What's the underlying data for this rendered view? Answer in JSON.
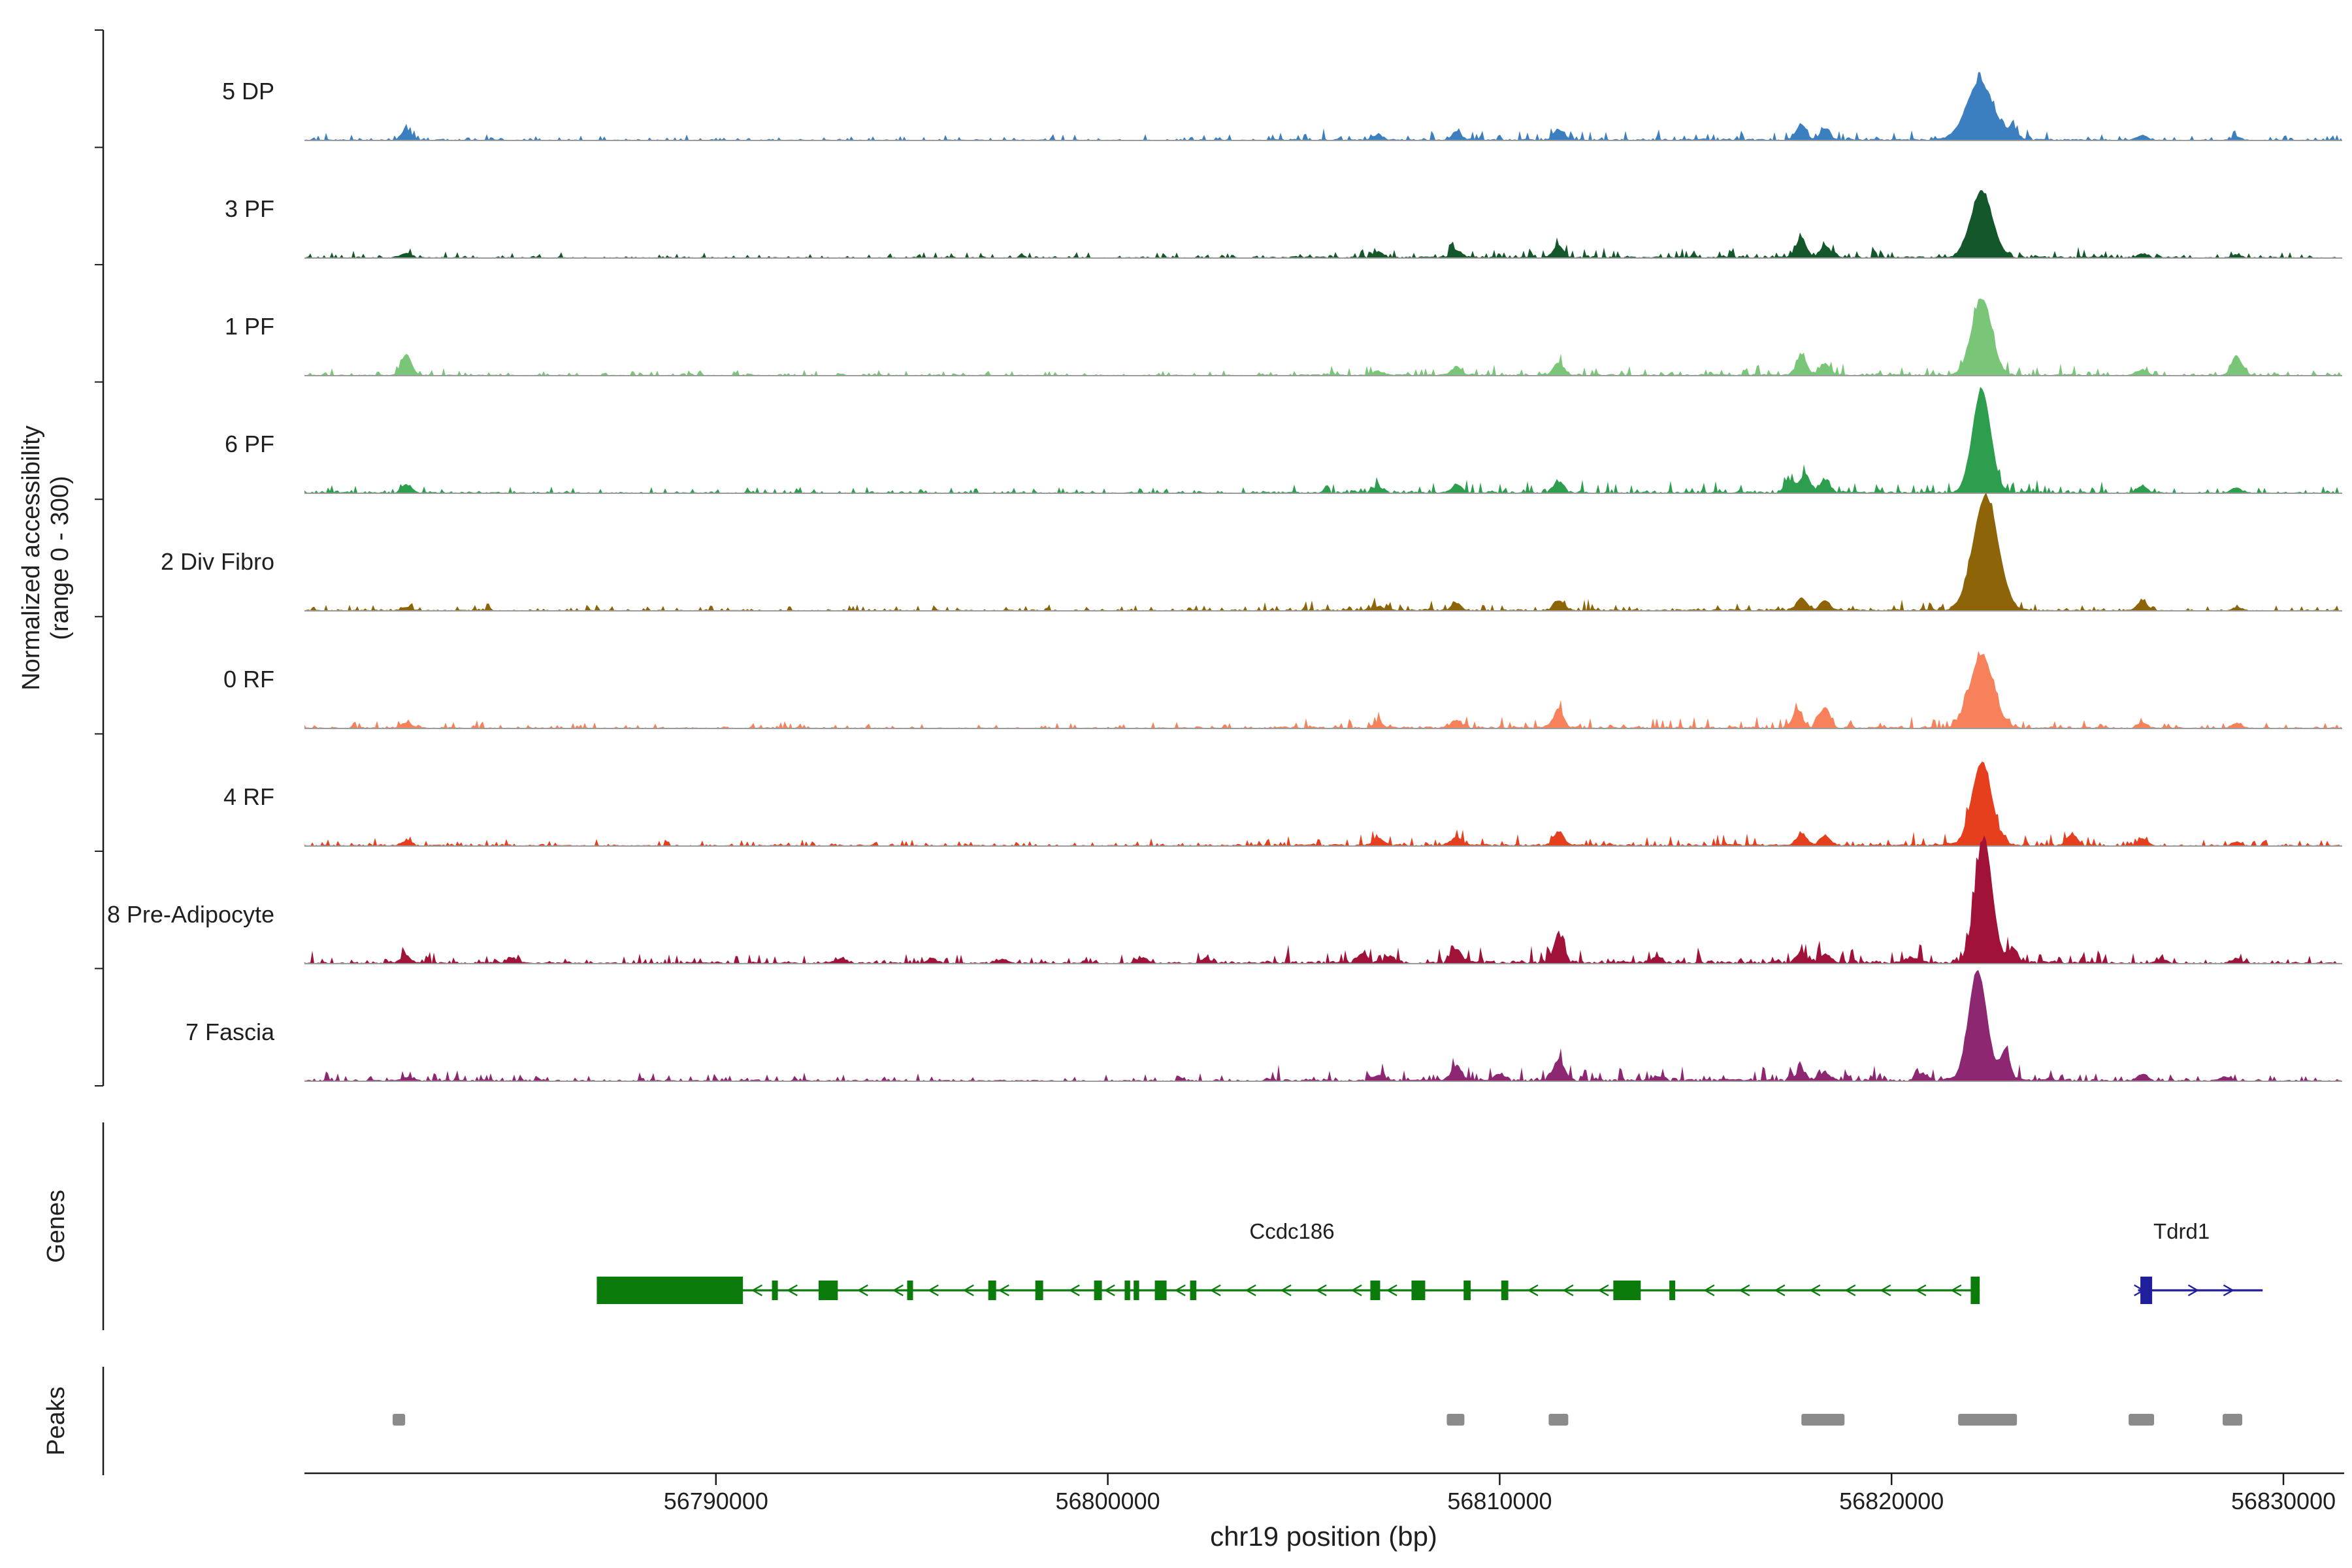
{
  "y_axis": {
    "label_line1": "Normalized accessibility",
    "label_line2": "(range 0 - 300)"
  },
  "sections": {
    "genes_label": "Genes",
    "peaks_label": "Peaks"
  },
  "x_axis": {
    "title": "chr19 position (bp)",
    "ticks": [
      56790000,
      56800000,
      56810000,
      56820000,
      56830000
    ]
  },
  "chart_data": {
    "type": "area",
    "subtype": "genome-coverage-tracks",
    "title": "",
    "xlabel": "chr19 position (bp)",
    "ylabel": "Normalized accessibility (range 0 - 300)",
    "domain": [
      56779500,
      56831500
    ],
    "track_range": [
      0,
      300
    ],
    "x_ticks": [
      56790000,
      56800000,
      56810000,
      56820000,
      56830000
    ],
    "tracks": [
      {
        "label": "5 DP",
        "color": "#3c7fc0",
        "noise": 5,
        "peaks": [
          [
            56782100,
            25
          ],
          [
            56806900,
            12
          ],
          [
            56808900,
            20
          ],
          [
            56811500,
            26
          ],
          [
            56817700,
            38
          ],
          [
            56818300,
            26
          ],
          [
            56822250,
            140,
            800
          ],
          [
            56823100,
            25
          ],
          [
            56826400,
            12
          ],
          [
            56828800,
            9
          ]
        ]
      },
      {
        "label": "3 PF",
        "color": "#14572b",
        "noise": 5,
        "peaks": [
          [
            56782100,
            10
          ],
          [
            56806900,
            14
          ],
          [
            56808900,
            18
          ],
          [
            56811500,
            30
          ],
          [
            56817700,
            48
          ],
          [
            56818300,
            30
          ],
          [
            56822300,
            160,
            650
          ],
          [
            56826400,
            10
          ],
          [
            56828800,
            8
          ]
        ]
      },
      {
        "label": "1 PF",
        "color": "#79c678",
        "noise": 5,
        "peaks": [
          [
            56782100,
            52
          ],
          [
            56806900,
            10
          ],
          [
            56808900,
            20
          ],
          [
            56811500,
            30
          ],
          [
            56817700,
            48
          ],
          [
            56818300,
            28
          ],
          [
            56822300,
            185,
            600
          ],
          [
            56826400,
            14
          ],
          [
            56828800,
            48
          ]
        ]
      },
      {
        "label": "6 PF",
        "color": "#2d9e4e",
        "noise": 5.5,
        "peaks": [
          [
            56782100,
            20
          ],
          [
            56806900,
            14
          ],
          [
            56808900,
            20
          ],
          [
            56811500,
            27
          ],
          [
            56817400,
            30
          ],
          [
            56817800,
            44
          ],
          [
            56818300,
            30
          ],
          [
            56822300,
            250,
            550
          ],
          [
            56826400,
            17
          ],
          [
            56828800,
            13
          ]
        ]
      },
      {
        "label": "2 Div Fibro",
        "color": "#8e6408",
        "noise": 5,
        "peaks": [
          [
            56782100,
            8
          ],
          [
            56806900,
            10
          ],
          [
            56808900,
            16
          ],
          [
            56811500,
            24
          ],
          [
            56817700,
            30
          ],
          [
            56818300,
            24
          ],
          [
            56822400,
            275,
            750
          ],
          [
            56826400,
            24
          ],
          [
            56828800,
            7
          ]
        ]
      },
      {
        "label": "0 RF",
        "color": "#f7815a",
        "noise": 5.5,
        "peaks": [
          [
            56782100,
            13
          ],
          [
            56806900,
            12
          ],
          [
            56808900,
            20
          ],
          [
            56811500,
            44
          ],
          [
            56817600,
            44
          ],
          [
            56818300,
            50
          ],
          [
            56822300,
            175,
            700
          ],
          [
            56826400,
            13
          ],
          [
            56828800,
            12
          ]
        ]
      },
      {
        "label": "4 RF",
        "color": "#e53f1e",
        "noise": 6,
        "peaks": [
          [
            56782100,
            12
          ],
          [
            56806900,
            17
          ],
          [
            56808900,
            20
          ],
          [
            56811500,
            34
          ],
          [
            56817700,
            30
          ],
          [
            56818300,
            24
          ],
          [
            56822300,
            200,
            600
          ],
          [
            56824600,
            28
          ],
          [
            56826400,
            17
          ],
          [
            56828800,
            9
          ]
        ]
      },
      {
        "label": "8 Pre-Adipocyte",
        "color": "#a11238",
        "noise": 8,
        "peaks": [
          [
            56782100,
            17
          ],
          [
            56784800,
            14
          ],
          [
            56793200,
            13
          ],
          [
            56795500,
            12
          ],
          [
            56797300,
            10
          ],
          [
            56800900,
            13
          ],
          [
            56802500,
            12
          ],
          [
            56806500,
            24
          ],
          [
            56807200,
            17
          ],
          [
            56808900,
            34
          ],
          [
            56811500,
            70
          ],
          [
            56814000,
            14
          ],
          [
            56817700,
            27
          ],
          [
            56818300,
            20
          ],
          [
            56820500,
            14
          ],
          [
            56822350,
            300,
            520
          ],
          [
            56823100,
            34
          ],
          [
            56826900,
            10
          ],
          [
            56828800,
            10
          ]
        ]
      },
      {
        "label": "7 Fascia",
        "color": "#8e2772",
        "noise": 7,
        "peaks": [
          [
            56782100,
            8
          ],
          [
            56806900,
            14
          ],
          [
            56808900,
            37
          ],
          [
            56810000,
            17
          ],
          [
            56811500,
            50
          ],
          [
            56814000,
            10
          ],
          [
            56817700,
            24
          ],
          [
            56818300,
            17
          ],
          [
            56820800,
            17
          ],
          [
            56822200,
            265,
            550
          ],
          [
            56822900,
            70
          ],
          [
            56826400,
            17
          ],
          [
            56828500,
            10
          ]
        ]
      }
    ],
    "genes": [
      {
        "name": "Ccdc186",
        "color": "#0b7c0b",
        "strand": "-",
        "start": 56786960,
        "end": 56822250,
        "label_bp": 56804700,
        "exons": [
          {
            "s": 56786960,
            "e": 56790690,
            "tall": true
          },
          {
            "s": 56791430,
            "e": 56791580
          },
          {
            "s": 56792620,
            "e": 56793110
          },
          {
            "s": 56794880,
            "e": 56795030
          },
          {
            "s": 56796950,
            "e": 56797150
          },
          {
            "s": 56798150,
            "e": 56798350
          },
          {
            "s": 56799650,
            "e": 56799850
          },
          {
            "s": 56800430,
            "e": 56800570
          },
          {
            "s": 56800660,
            "e": 56800800
          },
          {
            "s": 56801200,
            "e": 56801500
          },
          {
            "s": 56802100,
            "e": 56802260
          },
          {
            "s": 56806700,
            "e": 56806950
          },
          {
            "s": 56807750,
            "e": 56808100
          },
          {
            "s": 56809080,
            "e": 56809260
          },
          {
            "s": 56810040,
            "e": 56810220
          },
          {
            "s": 56812900,
            "e": 56813600
          },
          {
            "s": 56814330,
            "e": 56814480
          },
          {
            "s": 56822020,
            "e": 56822250,
            "tall": true
          }
        ]
      },
      {
        "name": "Tdrd1",
        "color": "#1f1f9c",
        "strand": "+",
        "start": 56826290,
        "end": 56829470,
        "label_bp": 56827400,
        "exons": [
          {
            "s": 56826350,
            "e": 56826650,
            "tall": true
          }
        ]
      }
    ],
    "peaks": [
      [
        56781750,
        56782070
      ],
      [
        56808650,
        56809100
      ],
      [
        56811250,
        56811750
      ],
      [
        56817700,
        56818800
      ],
      [
        56821700,
        56823200
      ],
      [
        56826050,
        56826700
      ],
      [
        56828450,
        56828950
      ]
    ]
  }
}
